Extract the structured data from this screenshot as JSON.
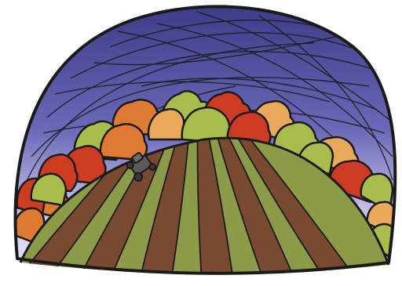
{
  "illustration": {
    "subject": "farm-field-under-dome-sky",
    "icon": "tractor-icon",
    "colors": {
      "sky_top": "#3b3a85",
      "sky_mid": "#6a68b8",
      "sky_glow": "#d8d6f0",
      "outline": "#1a1a1a",
      "tree_red": "#cc3b22",
      "tree_orange": "#df7a33",
      "tree_gold": "#e9a85a",
      "tree_green": "#a9bd4d",
      "soil_brown": "#7a4a30",
      "crop_green": "#8c9b47",
      "tractor": "#5a5a5a",
      "background": "#ffffff"
    },
    "stripe_count": 12
  }
}
